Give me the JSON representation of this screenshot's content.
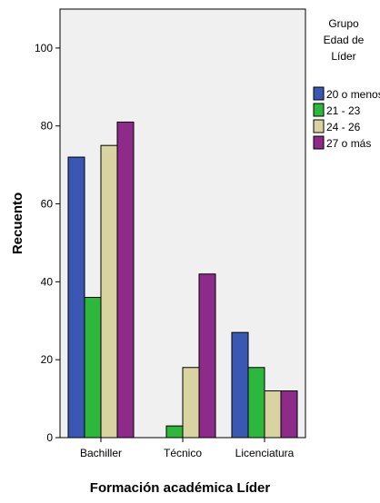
{
  "chart_data": {
    "type": "bar",
    "xlabel": "Formación académica Líder",
    "ylabel": "Recuento",
    "categories": [
      "Bachiller",
      "Técnico",
      "Licenciatura"
    ],
    "ylim": [
      0,
      110
    ],
    "yticks": [
      0,
      20,
      40,
      60,
      80,
      100
    ],
    "grid": false,
    "legend_placement": "right",
    "legend_title": [
      "Grupo",
      "Edad de",
      "Líder"
    ],
    "series": [
      {
        "name": "20 o menos",
        "color": "#3a57b4",
        "values": [
          72,
          0,
          27
        ]
      },
      {
        "name": "21 - 23",
        "color": "#2db83d",
        "values": [
          36,
          3,
          18
        ]
      },
      {
        "name": "24 - 26",
        "color": "#d8d3a0",
        "values": [
          75,
          18,
          12
        ]
      },
      {
        "name": "27 o más",
        "color": "#8e2a8a",
        "values": [
          81,
          42,
          12
        ]
      }
    ],
    "plot_background": "#f0f0f0"
  }
}
